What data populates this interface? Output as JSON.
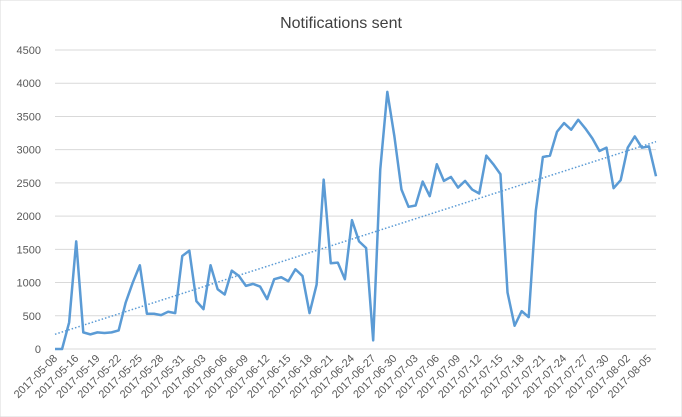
{
  "chart_data": {
    "type": "line",
    "title": "Notifications sent",
    "categories": [
      "2017-05-08",
      null,
      null,
      "2017-05-16",
      null,
      null,
      "2017-05-19",
      null,
      null,
      "2017-05-22",
      null,
      null,
      "2017-05-25",
      null,
      null,
      "2017-05-28",
      null,
      null,
      "2017-05-31",
      null,
      null,
      "2017-06-03",
      null,
      null,
      "2017-06-06",
      null,
      null,
      "2017-06-09",
      null,
      null,
      "2017-06-12",
      null,
      null,
      "2017-06-15",
      null,
      null,
      "2017-06-18",
      null,
      null,
      "2017-06-21",
      null,
      null,
      "2017-06-24",
      null,
      null,
      "2017-06-27",
      null,
      null,
      "2017-06-30",
      null,
      null,
      "2017-07-03",
      null,
      null,
      "2017-07-06",
      null,
      null,
      "2017-07-09",
      null,
      null,
      "2017-07-12",
      null,
      null,
      "2017-07-15",
      null,
      null,
      "2017-07-18",
      null,
      null,
      "2017-07-21",
      null,
      null,
      "2017-07-24",
      null,
      null,
      "2017-07-27",
      null,
      null,
      "2017-07-30",
      null,
      null,
      "2017-08-02",
      null,
      null,
      "2017-08-05",
      null
    ],
    "series": [
      {
        "color": "#5b9bd5",
        "values": [
          0,
          0,
          400,
          1620,
          250,
          220,
          250,
          240,
          250,
          280,
          700,
          1000,
          1260,
          530,
          530,
          510,
          560,
          540,
          1400,
          1480,
          720,
          600,
          1260,
          900,
          820,
          1180,
          1100,
          950,
          980,
          940,
          750,
          1050,
          1080,
          1020,
          1200,
          1100,
          540,
          970,
          2550,
          1290,
          1300,
          1050,
          1940,
          1620,
          1520,
          130,
          2700,
          3870,
          3200,
          2400,
          2140,
          2160,
          2520,
          2300,
          2780,
          2530,
          2590,
          2430,
          2530,
          2400,
          2340,
          2910,
          2780,
          2630,
          850,
          350,
          570,
          480,
          2080,
          2890,
          2910,
          3270,
          3400,
          3300,
          3450,
          3320,
          3170,
          2980,
          3030,
          2420,
          2540,
          3030,
          3200,
          3030,
          3050,
          2600
        ]
      }
    ],
    "trendline": {
      "kind": "linear",
      "color": "#5b9bd5",
      "dotted": true
    },
    "ylim": [
      0,
      4500
    ],
    "yticks": [
      0,
      500,
      1000,
      1500,
      2000,
      2500,
      3000,
      3500,
      4000,
      4500
    ],
    "grid": true
  }
}
